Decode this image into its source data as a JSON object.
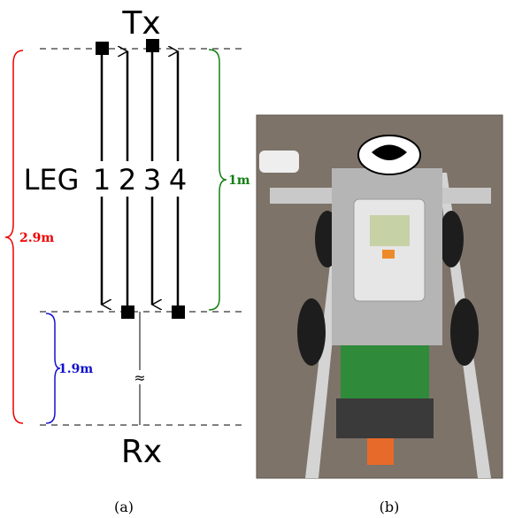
{
  "diagram": {
    "top_label": "Tx",
    "bottom_label": "Rx",
    "leg_label": "LEG",
    "legs": [
      "1",
      "2",
      "3",
      "4"
    ],
    "distances": {
      "total": "2.9m",
      "leg": "1m",
      "gap": "1.9m"
    },
    "gap_symbol": "≈"
  },
  "captions": [
    "(a)",
    "(b)"
  ]
}
